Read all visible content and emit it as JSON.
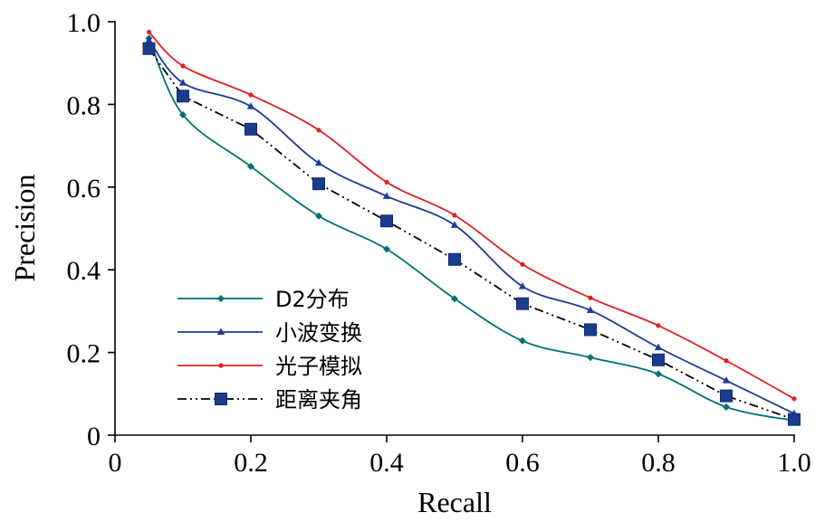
{
  "chart_data": {
    "type": "line",
    "title": "",
    "xlabel": "Recall",
    "ylabel": "Precision",
    "xlim": [
      0,
      1.0
    ],
    "ylim": [
      0,
      1.0
    ],
    "x_ticks": [
      "0",
      "0.2",
      "0.4",
      "0.6",
      "0.8",
      "1.0"
    ],
    "y_ticks": [
      "0",
      "0.2",
      "0.4",
      "0.6",
      "0.8",
      "1.0"
    ],
    "grid": false,
    "legend_position": "bottom-left",
    "series": [
      {
        "name": "D2分布",
        "color": "#007070",
        "marker": "diamond",
        "line_style": "solid",
        "x": [
          0.05,
          0.1,
          0.2,
          0.3,
          0.4,
          0.5,
          0.6,
          0.7,
          0.8,
          0.9,
          1.0
        ],
        "y": [
          0.96,
          0.775,
          0.65,
          0.53,
          0.45,
          0.33,
          0.228,
          0.188,
          0.148,
          0.068,
          0.035
        ]
      },
      {
        "name": "小波变换",
        "color": "#1e3c96",
        "marker": "triangle",
        "line_style": "solid",
        "x": [
          0.05,
          0.1,
          0.2,
          0.3,
          0.4,
          0.5,
          0.6,
          0.7,
          0.8,
          0.9,
          1.0
        ],
        "y": [
          0.955,
          0.852,
          0.795,
          0.658,
          0.578,
          0.508,
          0.36,
          0.302,
          0.212,
          0.132,
          0.052
        ]
      },
      {
        "name": "光子模拟",
        "color": "#e02020",
        "marker": "dot",
        "line_style": "solid",
        "x": [
          0.05,
          0.1,
          0.2,
          0.3,
          0.4,
          0.5,
          0.6,
          0.7,
          0.8,
          0.9,
          1.0
        ],
        "y": [
          0.975,
          0.893,
          0.823,
          0.738,
          0.612,
          0.532,
          0.413,
          0.332,
          0.265,
          0.18,
          0.088
        ]
      },
      {
        "name": "距离夹角",
        "color": "#000000",
        "marker_color": "#1a3c8c",
        "marker": "square",
        "line_style": "dash-dot-dot",
        "x": [
          0.05,
          0.1,
          0.2,
          0.3,
          0.4,
          0.5,
          0.6,
          0.7,
          0.8,
          0.9,
          1.0
        ],
        "y": [
          0.935,
          0.82,
          0.74,
          0.608,
          0.518,
          0.425,
          0.318,
          0.255,
          0.182,
          0.095,
          0.038
        ]
      }
    ]
  }
}
